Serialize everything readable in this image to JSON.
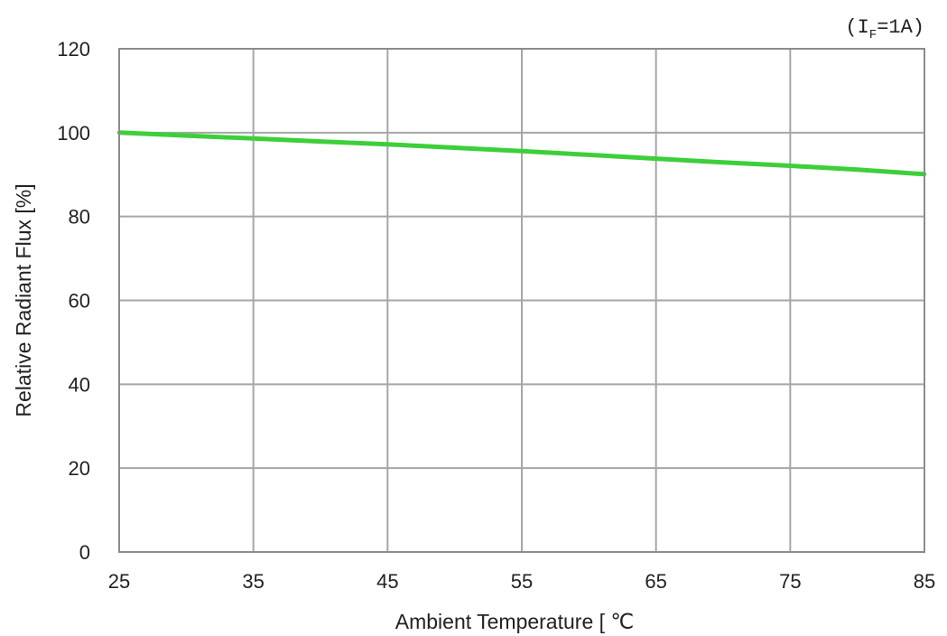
{
  "chart_data": {
    "type": "line",
    "condition": {
      "prefix": "(I",
      "subscript": "F",
      "suffix": "=1A)"
    },
    "xlabel": "Ambient Temperature [ ℃",
    "ylabel": "Relative Radiant Flux [%]",
    "xlim": [
      25,
      85
    ],
    "ylim": [
      0,
      120
    ],
    "xticks": [
      "25",
      "35",
      "45",
      "55",
      "65",
      "75",
      "85"
    ],
    "yticks": [
      "0",
      "20",
      "40",
      "60",
      "80",
      "100",
      "120"
    ],
    "grid": true,
    "colors": {
      "line": "#3dcf3a",
      "grid": "#a6a6a6",
      "frame": "#8c8c8c"
    },
    "series": [
      {
        "x": [
          25,
          30,
          35,
          40,
          45,
          50,
          55,
          60,
          65,
          70,
          75,
          80,
          85
        ],
        "y": [
          100,
          99.3,
          98.6,
          97.9,
          97.2,
          96.4,
          95.6,
          94.7,
          93.8,
          92.9,
          92.1,
          91.2,
          90.1
        ]
      }
    ]
  }
}
